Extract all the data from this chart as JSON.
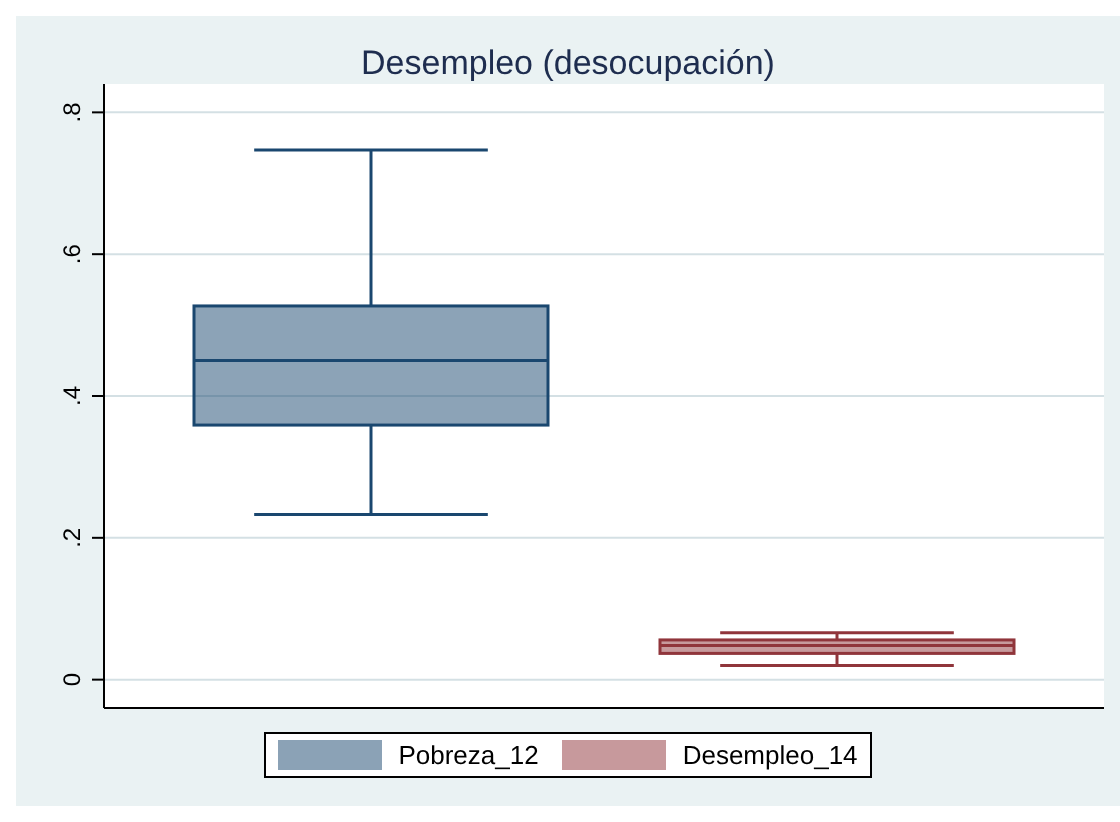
{
  "chart_data": {
    "type": "box",
    "title": "Desempleo (desocupación)",
    "categories": [
      null
    ],
    "series": [
      {
        "name": "Pobreza_12",
        "color": "#1a476f",
        "boxes": [
          {
            "low": 0.233,
            "q1": 0.359,
            "median": 0.45,
            "q3": 0.527,
            "high": 0.747
          }
        ]
      },
      {
        "name": "Desempleo_14",
        "color": "#90353b",
        "boxes": [
          {
            "low": 0.02,
            "q1": 0.037,
            "median": 0.048,
            "q3": 0.056,
            "high": 0.066
          }
        ]
      }
    ],
    "ylim": [
      -0.04,
      0.84
    ],
    "yticks": [
      {
        "value": 0,
        "label": "0"
      },
      {
        "value": 0.2,
        "label": ".2"
      },
      {
        "value": 0.4,
        "label": ".4"
      },
      {
        "value": 0.6,
        "label": ".6"
      },
      {
        "value": 0.8,
        "label": ".8"
      }
    ],
    "grid": "y",
    "legend": "bottom"
  }
}
